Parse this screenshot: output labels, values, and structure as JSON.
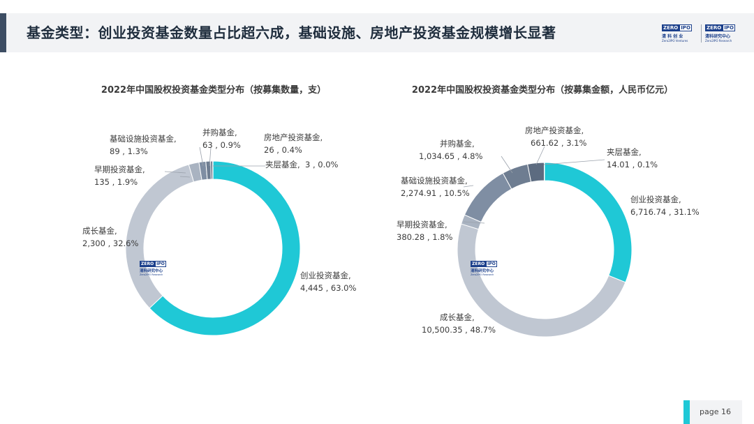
{
  "header": {
    "title": "基金类型：创业投资基金数量占比超六成，基础设施、房地产投资基金规模增长显著"
  },
  "logos": {
    "ventures": {
      "mark_left": "ZERO",
      "mark_right": "IPO",
      "cn": "清 科 创 业",
      "en": "Zero2IPO Ventures"
    },
    "research": {
      "mark_left": "ZERO",
      "mark_right": "IPO",
      "cn": "清科研究中心",
      "en": "Zero2IPO Research"
    }
  },
  "footer": {
    "page_label": "page  16"
  },
  "colors": {
    "venture": "#1fc8d6",
    "growth": "#c0c7d2",
    "early": "#a9b3c1",
    "infrastructure": "#7f8ea3",
    "buyout": "#6e7d91",
    "real_estate": "#5c6b80",
    "mezzanine": "#4a5567"
  },
  "chart_data": [
    {
      "type": "pie",
      "style": "donut",
      "title": "2022年中国股权投资基金类型分布（按募集数量，支）",
      "slices": [
        {
          "name": "创业投资基金,",
          "value": 4445,
          "value_label": "4,445 , 63.0%",
          "color_key": "venture"
        },
        {
          "name": "成长基金,",
          "value": 2300,
          "value_label": "2,300 , 32.6%",
          "color_key": "growth"
        },
        {
          "name": "早期投资基金,",
          "value": 135,
          "value_label": "135 , 1.9%",
          "color_key": "early"
        },
        {
          "name": "基础设施投资基金,",
          "value": 89,
          "value_label": "89 , 1.3%",
          "color_key": "infrastructure"
        },
        {
          "name": "并购基金,",
          "value": 63,
          "value_label": "63 , 0.9%",
          "color_key": "buyout"
        },
        {
          "name": "房地产投资基金,",
          "value": 26,
          "value_label": "26 , 0.4%",
          "color_key": "real_estate"
        },
        {
          "name": "夹层基金,",
          "value": 3,
          "value_label": "3 , 0.0%",
          "color_key": "mezzanine"
        }
      ]
    },
    {
      "type": "pie",
      "style": "donut",
      "title": "2022年中国股权投资基金类型分布（按募集金额，人民币亿元）",
      "slices": [
        {
          "name": "创业投资基金,",
          "value": 6716.74,
          "value_label": "6,716.74 , 31.1%",
          "color_key": "venture"
        },
        {
          "name": "成长基金,",
          "value": 10500.35,
          "value_label": "10,500.35 , 48.7%",
          "color_key": "growth"
        },
        {
          "name": "早期投资基金,",
          "value": 380.28,
          "value_label": "380.28 , 1.8%",
          "color_key": "early"
        },
        {
          "name": "基础设施投资基金,",
          "value": 2274.91,
          "value_label": "2,274.91 , 10.5%",
          "color_key": "infrastructure"
        },
        {
          "name": "并购基金,",
          "value": 1034.65,
          "value_label": "1,034.65 , 4.8%",
          "color_key": "buyout"
        },
        {
          "name": "房地产投资基金,",
          "value": 661.62,
          "value_label": "661.62 , 3.1%",
          "color_key": "real_estate"
        },
        {
          "name": "夹层基金,",
          "value": 14.01,
          "value_label": "14.01 , 0.1%",
          "color_key": "mezzanine"
        }
      ]
    }
  ]
}
